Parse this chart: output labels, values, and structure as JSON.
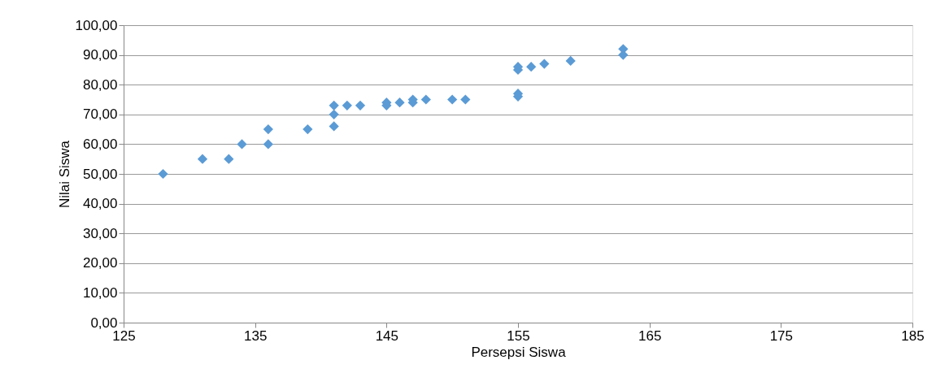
{
  "chart_data": {
    "type": "scatter",
    "xlabel": "Persepsi Siswa",
    "ylabel": "Nilai Siswa",
    "x": [
      128,
      131,
      133,
      134,
      136,
      136,
      139,
      141,
      141,
      141,
      142,
      143,
      145,
      145,
      146,
      147,
      147,
      148,
      150,
      151,
      155,
      155,
      155,
      155,
      156,
      157,
      159,
      163,
      163
    ],
    "series": [
      {
        "color": "#5b9bd5",
        "values": [
          50,
          55,
          55,
          60,
          65,
          60,
          65,
          73,
          70,
          66,
          73,
          73,
          74,
          73,
          74,
          75,
          74,
          75,
          75,
          75,
          86,
          85,
          77,
          76,
          86,
          87,
          88,
          92,
          90
        ]
      }
    ],
    "xlim": [
      125,
      185
    ],
    "xticks": [
      125,
      135,
      145,
      155,
      165,
      175,
      185
    ],
    "ylim": [
      0,
      100
    ],
    "yticks": [
      {
        "value": 0,
        "label": "0,00"
      },
      {
        "value": 10,
        "label": "10,00"
      },
      {
        "value": 20,
        "label": "20,00"
      },
      {
        "value": 30,
        "label": "30,00"
      },
      {
        "value": 40,
        "label": "40,00"
      },
      {
        "value": 50,
        "label": "50,00"
      },
      {
        "value": 60,
        "label": "60,00"
      },
      {
        "value": 70,
        "label": "70,00"
      },
      {
        "value": 80,
        "label": "80,00"
      },
      {
        "value": 90,
        "label": "90,00"
      },
      {
        "value": 100,
        "label": "100,00"
      }
    ],
    "grid": "y",
    "marker": "diamond"
  }
}
